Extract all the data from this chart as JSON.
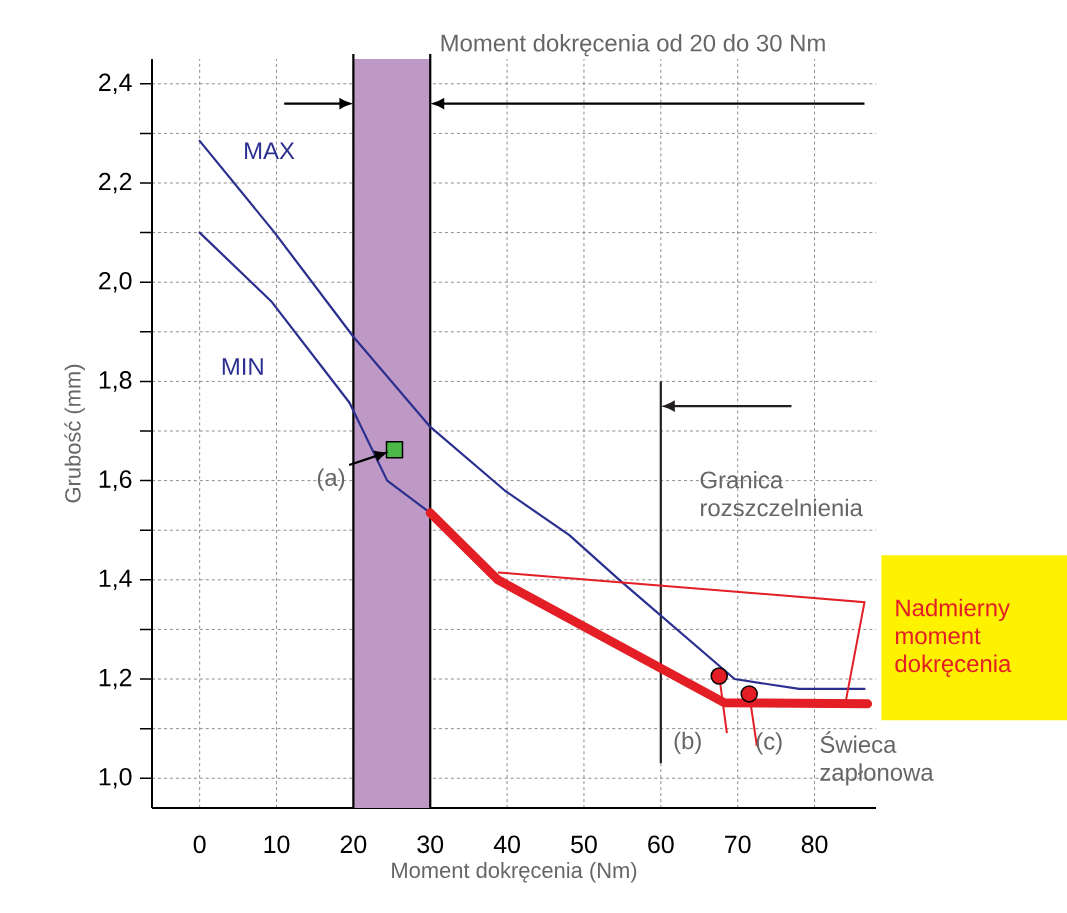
{
  "chart_data": {
    "type": "line",
    "xlabel": "Moment dokręcenia (Nm)",
    "ylabel": "Grubość (mm)",
    "xlim": [
      -6.2,
      88
    ],
    "ylim": [
      0.94,
      2.45
    ],
    "xticks": [
      0,
      10,
      20,
      30,
      40,
      50,
      60,
      70,
      80
    ],
    "yticks": [
      {
        "value": 1.0,
        "label": "1,0"
      },
      {
        "value": 1.1,
        "label": null
      },
      {
        "value": 1.2,
        "label": "1,2"
      },
      {
        "value": 1.3,
        "label": null
      },
      {
        "value": 1.4,
        "label": "1,4"
      },
      {
        "value": 1.5,
        "label": null
      },
      {
        "value": 1.6,
        "label": "1,6"
      },
      {
        "value": 1.7,
        "label": null
      },
      {
        "value": 1.8,
        "label": "1,8"
      },
      {
        "value": 1.9,
        "label": null
      },
      {
        "value": 2.0,
        "label": "2,0"
      },
      {
        "value": 2.1,
        "label": null
      },
      {
        "value": 2.2,
        "label": "2,2"
      },
      {
        "value": 2.3,
        "label": null
      },
      {
        "value": 2.4,
        "label": "2,4"
      }
    ],
    "grid": true,
    "series": [
      {
        "name": "MAX",
        "color": "#2b2f8f",
        "x": [
          0,
          9.75,
          20,
          29.9,
          39.7,
          48.1,
          54.6,
          69.6,
          78,
          86.5
        ],
        "values": [
          2.285,
          2.1,
          1.89,
          1.71,
          1.58,
          1.49,
          1.4,
          1.2,
          1.18,
          1.18
        ]
      },
      {
        "name": "MIN",
        "color": "#2b2f8f",
        "x": [
          0,
          9.4,
          19.5,
          24.4,
          30
        ],
        "values": [
          2.1,
          1.96,
          1.757,
          1.6,
          1.535
        ]
      },
      {
        "color": "#e31e24",
        "x": [
          30,
          38.8,
          68.3,
          86.9
        ],
        "values": [
          1.535,
          1.4,
          1.152,
          1.15
        ]
      },
      {
        "type": "scatter",
        "marker": "square",
        "color": "#4cb848",
        "x": [
          25.35
        ],
        "values": [
          1.662
        ]
      },
      {
        "type": "scatter",
        "marker": "circle",
        "color": "#e31e24",
        "x": [
          67.6,
          71.5
        ],
        "values": [
          1.206,
          1.17
        ]
      }
    ],
    "bands": [
      {
        "axis": "x",
        "from": 20,
        "to": 30,
        "label": "Moment dokręcenia od 20 do 30 Nm",
        "color": "#bf99c6"
      }
    ],
    "ref_lines": [
      {
        "axis": "x",
        "value": 60,
        "label": "Granica rozszczelnienia",
        "color": "#231f20"
      }
    ],
    "annotations": [
      {
        "text": "(a)",
        "x": 25.35,
        "y": 1.662
      },
      {
        "text": "(b)",
        "x": 67.6,
        "y": 1.206
      },
      {
        "text": "(c)",
        "x": 71.5,
        "y": 1.17
      },
      {
        "text": "Świeca zapłonowa",
        "x": 86.9,
        "y": 1.15
      },
      {
        "text": "Nadmierny moment dokręcenia",
        "x": 84,
        "y": 1.15
      }
    ]
  }
}
